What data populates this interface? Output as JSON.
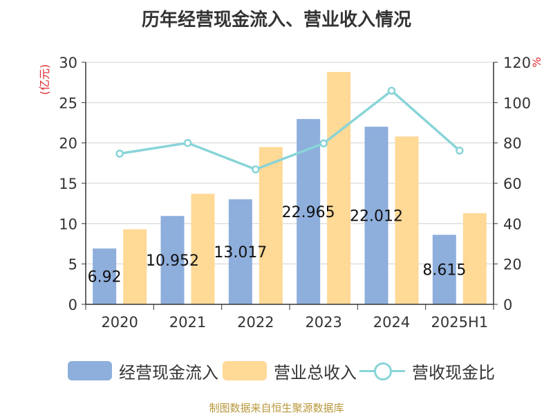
{
  "title": "历年经营现金流入、营业收入情况",
  "source": "制图数据来自恒生聚源数据库",
  "colors": {
    "cash_inflow": "#8eaedc",
    "revenue": "#ffd996",
    "ratio": "#88d4d8",
    "left_unit": "#e0262b",
    "axis": "#333333",
    "grid": "#d0d0d0",
    "source": "#b8973a"
  },
  "legend": [
    {
      "label": "经营现金流入",
      "kind": "bar"
    },
    {
      "label": "营业总收入",
      "kind": "bar"
    },
    {
      "label": "营收现金比",
      "kind": "line"
    }
  ],
  "chart_data": {
    "type": "bar",
    "title": "历年经营现金流入、营业收入情况",
    "categories": [
      "2020",
      "2021",
      "2022",
      "2023",
      "2024",
      "2025H1"
    ],
    "series": [
      {
        "name": "经营现金流入",
        "type": "bar",
        "axis": "left",
        "values": [
          6.92,
          10.952,
          13.017,
          22.965,
          22.012,
          8.615
        ]
      },
      {
        "name": "营业总收入",
        "type": "bar",
        "axis": "left",
        "values": [
          9.3,
          13.7,
          19.5,
          28.8,
          20.8,
          11.3
        ]
      },
      {
        "name": "营收现金比",
        "type": "line",
        "axis": "right",
        "values": [
          74.7,
          80.0,
          66.9,
          79.8,
          105.9,
          76.2
        ]
      }
    ],
    "data_labels": [
      "6.92",
      "10.952",
      "13.017",
      "22.965",
      "22.012",
      "8.615"
    ],
    "y_left": {
      "unit": "(亿元)",
      "min": 0,
      "max": 30,
      "ticks": [
        0,
        5,
        10,
        15,
        20,
        25,
        30
      ]
    },
    "y_right": {
      "unit": "%",
      "min": 0,
      "max": 120,
      "ticks": [
        0,
        20,
        40,
        60,
        80,
        100,
        120
      ]
    },
    "grid": true,
    "legend_position": "bottom"
  }
}
